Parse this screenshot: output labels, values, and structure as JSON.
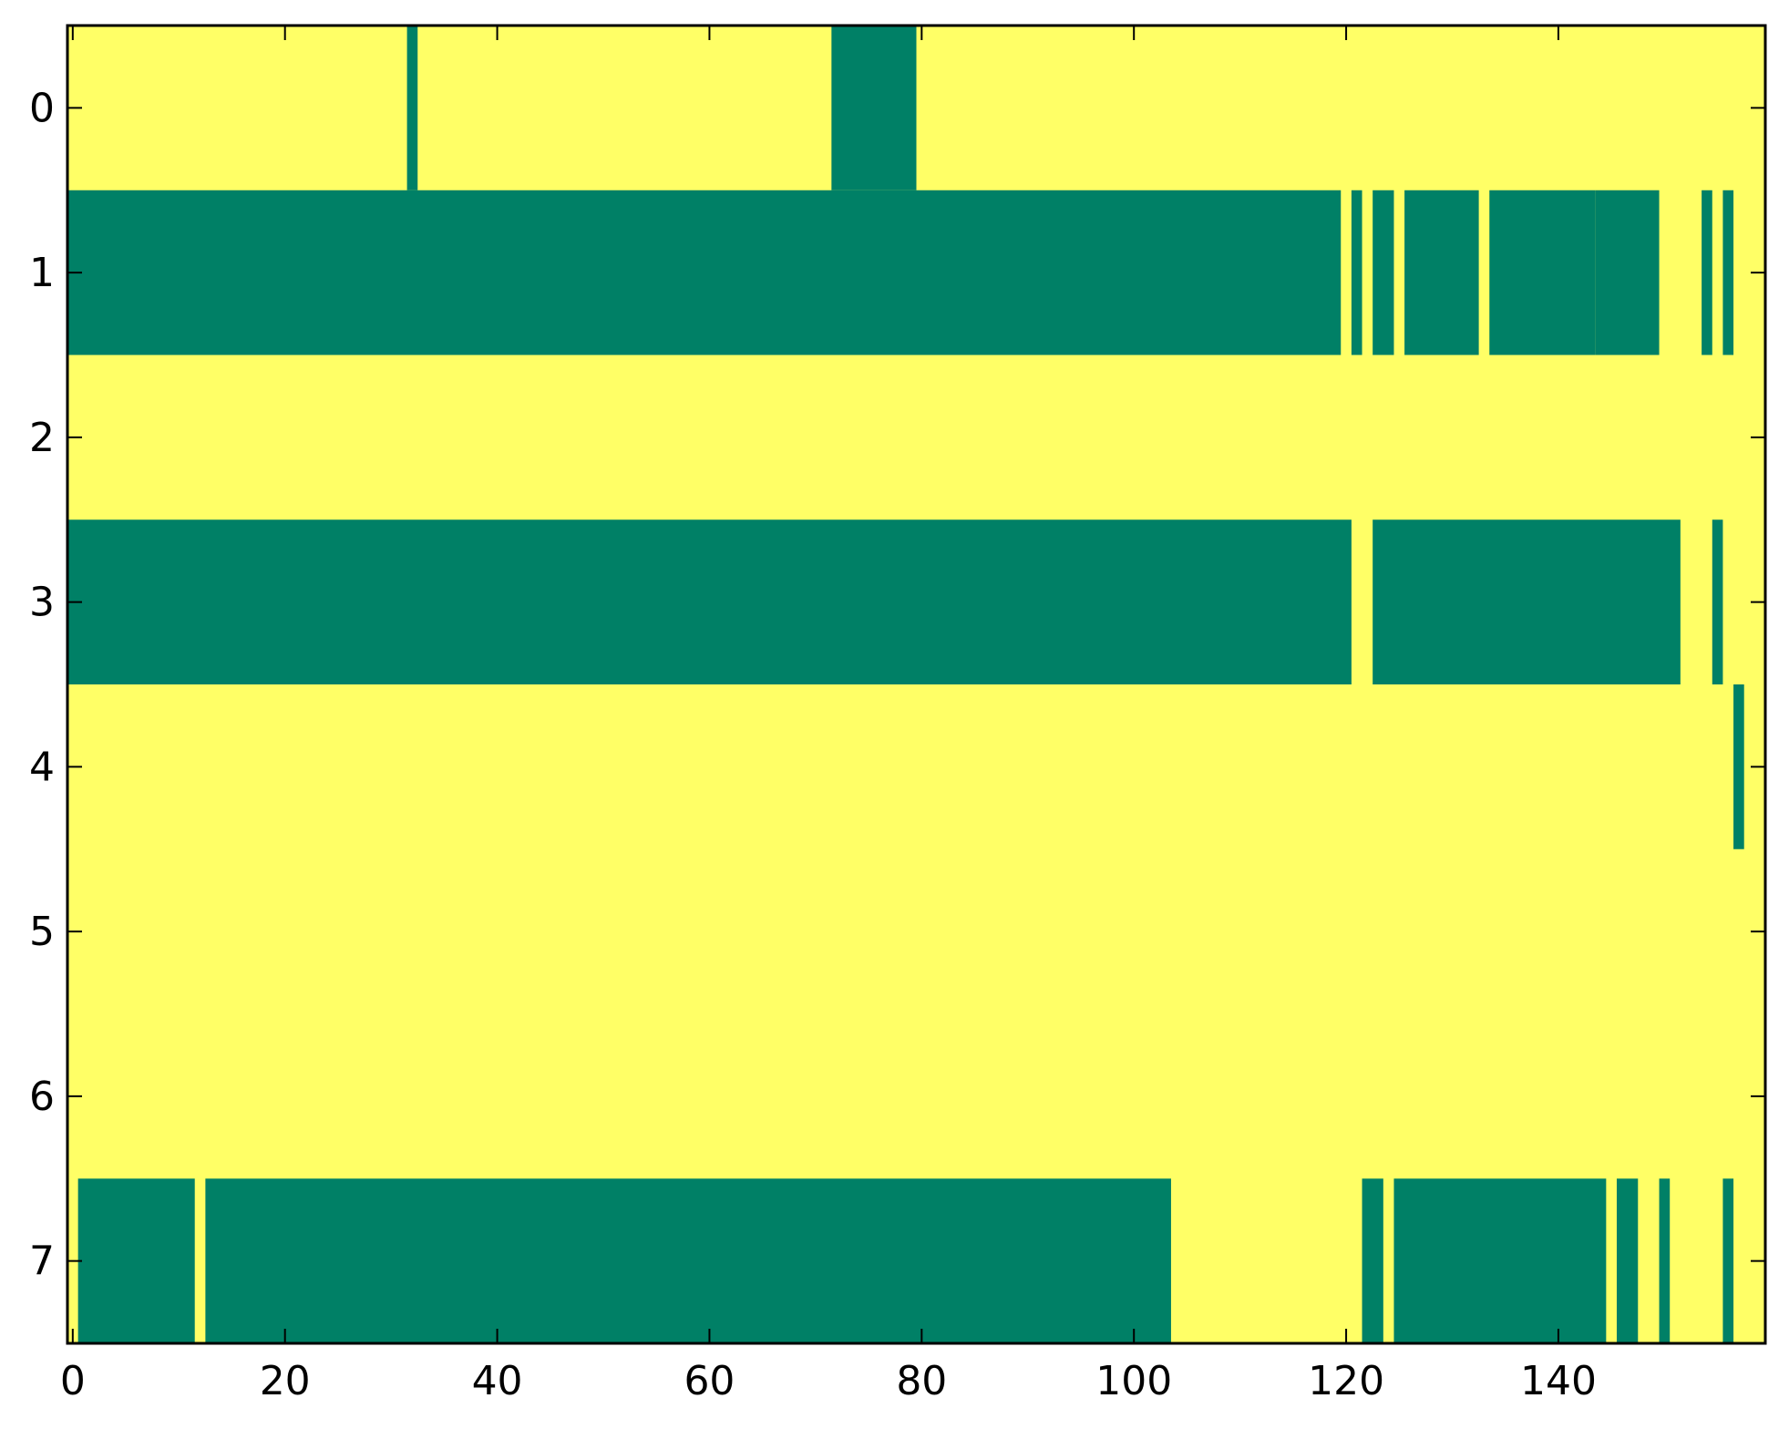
{
  "chart_data": {
    "type": "heatmap",
    "title": "",
    "xlabel": "",
    "ylabel": "",
    "xlim": [
      -0.5,
      159.5
    ],
    "ylim": [
      7.5,
      -0.5
    ],
    "x_ticks": [
      0,
      20,
      40,
      60,
      80,
      100,
      120,
      140
    ],
    "x_tick_labels": [
      "0",
      "20",
      "40",
      "60",
      "80",
      "100",
      "120",
      "140"
    ],
    "y_ticks": [
      0,
      1,
      2,
      3,
      4,
      5,
      6,
      7
    ],
    "y_tick_labels": [
      "0",
      "1",
      "2",
      "3",
      "4",
      "5",
      "6",
      "7"
    ],
    "grid": false,
    "legend": "none",
    "background_value_color": "#ffff66",
    "value_colors": {
      "0": "#ffff66",
      "1": "#008066"
    },
    "rows": 8,
    "columns": 160,
    "runs_description": "cells with value 1, per row, as [start_column, end_column] inclusive; all other cells are 0",
    "rows_runs": [
      {
        "row": 0,
        "runs": [
          [
            32,
            32
          ],
          [
            72,
            79
          ]
        ]
      },
      {
        "row": 1,
        "runs": [
          [
            0,
            119
          ],
          [
            121,
            121
          ],
          [
            123,
            124
          ],
          [
            126,
            132
          ],
          [
            134,
            143
          ],
          [
            144,
            149
          ],
          [
            154,
            154
          ],
          [
            156,
            156
          ]
        ]
      },
      {
        "row": 2,
        "runs": []
      },
      {
        "row": 3,
        "runs": [
          [
            0,
            120
          ],
          [
            123,
            151
          ],
          [
            155,
            155
          ]
        ]
      },
      {
        "row": 4,
        "runs": [
          [
            157,
            157
          ]
        ]
      },
      {
        "row": 5,
        "runs": []
      },
      {
        "row": 6,
        "runs": []
      },
      {
        "row": 7,
        "runs": [
          [
            1,
            11
          ],
          [
            13,
            103
          ],
          [
            122,
            123
          ],
          [
            125,
            144
          ],
          [
            146,
            147
          ],
          [
            150,
            150
          ],
          [
            156,
            156
          ]
        ]
      }
    ]
  }
}
